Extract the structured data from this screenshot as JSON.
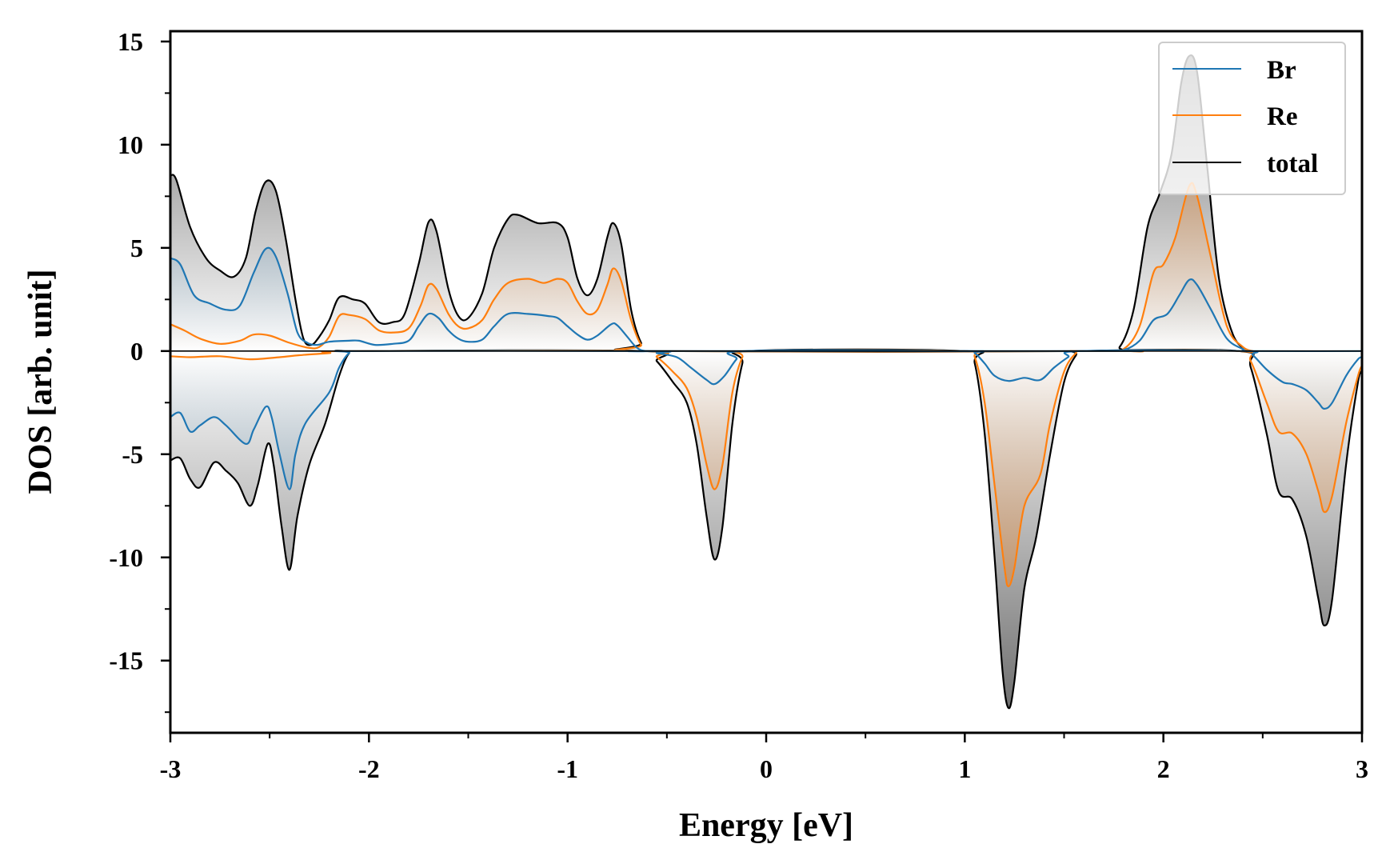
{
  "chart_data": {
    "type": "line",
    "title": "",
    "xlabel": "Energy [eV]",
    "ylabel": "DOS [arb. unit]",
    "xlim": [
      -3,
      3
    ],
    "ylim": [
      -18.5,
      15.5
    ],
    "x_ticks": [
      -3,
      -2,
      -1,
      0,
      1,
      2,
      3
    ],
    "x_tick_labels": [
      "-3",
      "-2",
      "-1",
      "0",
      "1",
      "2",
      "3"
    ],
    "y_ticks": [
      -15,
      -10,
      -5,
      0,
      5,
      10,
      15
    ],
    "y_tick_labels": [
      "-15",
      "-10",
      "-5",
      "0",
      "5",
      "10",
      "15"
    ],
    "grid": false,
    "legend_position": "top-right",
    "fill_under_curves": true,
    "series": [
      {
        "name": "Br",
        "color": "#1f77b4",
        "up": [
          [
            -3.0,
            4.5
          ],
          [
            -2.95,
            4.2
          ],
          [
            -2.88,
            2.7
          ],
          [
            -2.8,
            2.3
          ],
          [
            -2.72,
            2.0
          ],
          [
            -2.65,
            2.2
          ],
          [
            -2.58,
            3.8
          ],
          [
            -2.52,
            4.95
          ],
          [
            -2.47,
            4.6
          ],
          [
            -2.41,
            2.8
          ],
          [
            -2.36,
            0.9
          ],
          [
            -2.31,
            0.4
          ],
          [
            -2.26,
            0.3
          ],
          [
            -2.2,
            0.45
          ],
          [
            -2.1,
            0.5
          ],
          [
            -2.05,
            0.5
          ],
          [
            -1.97,
            0.3
          ],
          [
            -1.88,
            0.35
          ],
          [
            -1.8,
            0.5
          ],
          [
            -1.75,
            1.2
          ],
          [
            -1.7,
            1.8
          ],
          [
            -1.65,
            1.6
          ],
          [
            -1.6,
            1.0
          ],
          [
            -1.55,
            0.6
          ],
          [
            -1.5,
            0.45
          ],
          [
            -1.43,
            0.55
          ],
          [
            -1.37,
            1.2
          ],
          [
            -1.3,
            1.8
          ],
          [
            -1.2,
            1.8
          ],
          [
            -1.1,
            1.7
          ],
          [
            -1.05,
            1.6
          ],
          [
            -1.0,
            1.2
          ],
          [
            -0.95,
            0.8
          ],
          [
            -0.9,
            0.55
          ],
          [
            -0.85,
            0.75
          ],
          [
            -0.78,
            1.3
          ],
          [
            -0.75,
            1.25
          ],
          [
            -0.7,
            0.7
          ],
          [
            -0.65,
            0.15
          ],
          [
            -0.6,
            0.0
          ],
          [
            -0.5,
            0.0
          ],
          [
            3.0,
            0.0
          ],
          [
            1.7,
            0.0
          ],
          [
            1.8,
            0.05
          ],
          [
            1.88,
            0.5
          ],
          [
            1.95,
            1.5
          ],
          [
            2.02,
            1.8
          ],
          [
            2.08,
            2.7
          ],
          [
            2.13,
            3.45
          ],
          [
            2.17,
            3.2
          ],
          [
            2.24,
            2.0
          ],
          [
            2.32,
            0.6
          ],
          [
            2.4,
            0.1
          ],
          [
            2.45,
            0.0
          ]
        ],
        "down": [
          [
            -3.0,
            -3.2
          ],
          [
            -2.95,
            -3.0
          ],
          [
            -2.9,
            -3.9
          ],
          [
            -2.85,
            -3.6
          ],
          [
            -2.78,
            -3.2
          ],
          [
            -2.72,
            -3.6
          ],
          [
            -2.62,
            -4.5
          ],
          [
            -2.58,
            -3.8
          ],
          [
            -2.52,
            -2.7
          ],
          [
            -2.49,
            -3.2
          ],
          [
            -2.45,
            -5.0
          ],
          [
            -2.4,
            -6.7
          ],
          [
            -2.37,
            -5.0
          ],
          [
            -2.32,
            -3.5
          ],
          [
            -2.2,
            -2.0
          ],
          [
            -2.15,
            -0.8
          ],
          [
            -2.1,
            -0.1
          ],
          [
            -2.05,
            0.0
          ],
          [
            -0.6,
            0.0
          ],
          [
            -0.55,
            -0.1
          ],
          [
            -0.45,
            -0.3
          ],
          [
            -0.38,
            -0.8
          ],
          [
            -0.3,
            -1.4
          ],
          [
            -0.26,
            -1.6
          ],
          [
            -0.21,
            -1.2
          ],
          [
            -0.15,
            -0.4
          ],
          [
            -0.1,
            0.0
          ],
          [
            1.0,
            0.0
          ],
          [
            1.05,
            -0.1
          ],
          [
            1.1,
            -0.6
          ],
          [
            1.15,
            -1.2
          ],
          [
            1.22,
            -1.45
          ],
          [
            1.3,
            -1.3
          ],
          [
            1.38,
            -1.4
          ],
          [
            1.45,
            -0.8
          ],
          [
            1.52,
            -0.3
          ],
          [
            1.58,
            0.0
          ],
          [
            2.4,
            0.0
          ],
          [
            2.45,
            -0.2
          ],
          [
            2.52,
            -0.9
          ],
          [
            2.6,
            -1.5
          ],
          [
            2.65,
            -1.6
          ],
          [
            2.72,
            -1.9
          ],
          [
            2.78,
            -2.5
          ],
          [
            2.81,
            -2.8
          ],
          [
            2.85,
            -2.5
          ],
          [
            2.92,
            -1.2
          ],
          [
            2.98,
            -0.4
          ],
          [
            3.0,
            -0.3
          ]
        ]
      },
      {
        "name": "Re",
        "color": "#ff7f0e",
        "up": [
          [
            -3.0,
            1.3
          ],
          [
            -2.93,
            1.0
          ],
          [
            -2.85,
            0.6
          ],
          [
            -2.75,
            0.35
          ],
          [
            -2.65,
            0.5
          ],
          [
            -2.58,
            0.8
          ],
          [
            -2.5,
            0.75
          ],
          [
            -2.4,
            0.4
          ],
          [
            -2.3,
            0.15
          ],
          [
            -2.25,
            0.2
          ],
          [
            -2.2,
            0.7
          ],
          [
            -2.15,
            1.7
          ],
          [
            -2.1,
            1.75
          ],
          [
            -2.02,
            1.55
          ],
          [
            -1.95,
            1.0
          ],
          [
            -1.88,
            0.9
          ],
          [
            -1.8,
            1.1
          ],
          [
            -1.74,
            2.2
          ],
          [
            -1.7,
            3.2
          ],
          [
            -1.66,
            3.0
          ],
          [
            -1.6,
            1.8
          ],
          [
            -1.55,
            1.2
          ],
          [
            -1.5,
            1.1
          ],
          [
            -1.43,
            1.5
          ],
          [
            -1.37,
            2.5
          ],
          [
            -1.3,
            3.3
          ],
          [
            -1.2,
            3.5
          ],
          [
            -1.12,
            3.3
          ],
          [
            -1.05,
            3.5
          ],
          [
            -1.0,
            3.3
          ],
          [
            -0.95,
            2.4
          ],
          [
            -0.9,
            1.8
          ],
          [
            -0.85,
            2.0
          ],
          [
            -0.8,
            3.2
          ],
          [
            -0.77,
            4.0
          ],
          [
            -0.73,
            3.4
          ],
          [
            -0.68,
            1.5
          ],
          [
            -0.63,
            0.3
          ],
          [
            -0.58,
            0.0
          ],
          [
            1.7,
            0.0
          ],
          [
            1.8,
            0.1
          ],
          [
            1.88,
            1.2
          ],
          [
            1.95,
            3.8
          ],
          [
            2.0,
            4.2
          ],
          [
            2.06,
            5.5
          ],
          [
            2.13,
            8.0
          ],
          [
            2.17,
            7.5
          ],
          [
            2.24,
            4.5
          ],
          [
            2.32,
            1.2
          ],
          [
            2.4,
            0.2
          ],
          [
            2.45,
            0.0
          ]
        ],
        "down": [
          [
            -3.0,
            -0.25
          ],
          [
            -2.9,
            -0.3
          ],
          [
            -2.75,
            -0.25
          ],
          [
            -2.6,
            -0.4
          ],
          [
            -2.45,
            -0.3
          ],
          [
            -2.35,
            -0.2
          ],
          [
            -2.2,
            -0.1
          ],
          [
            -2.1,
            0.0
          ],
          [
            -0.62,
            0.0
          ],
          [
            -0.55,
            -0.3
          ],
          [
            -0.47,
            -1.0
          ],
          [
            -0.4,
            -1.8
          ],
          [
            -0.35,
            -3.2
          ],
          [
            -0.3,
            -5.5
          ],
          [
            -0.26,
            -6.7
          ],
          [
            -0.22,
            -5.5
          ],
          [
            -0.17,
            -2.0
          ],
          [
            -0.12,
            -0.3
          ],
          [
            -0.08,
            0.0
          ],
          [
            1.0,
            0.0
          ],
          [
            1.05,
            -0.3
          ],
          [
            1.1,
            -2.5
          ],
          [
            1.15,
            -6.5
          ],
          [
            1.2,
            -10.5
          ],
          [
            1.22,
            -11.4
          ],
          [
            1.25,
            -10.5
          ],
          [
            1.3,
            -7.5
          ],
          [
            1.38,
            -6.0
          ],
          [
            1.43,
            -3.5
          ],
          [
            1.5,
            -1.0
          ],
          [
            1.56,
            -0.1
          ],
          [
            1.6,
            0.0
          ],
          [
            2.38,
            0.0
          ],
          [
            2.44,
            -0.5
          ],
          [
            2.52,
            -2.5
          ],
          [
            2.58,
            -3.9
          ],
          [
            2.65,
            -4.0
          ],
          [
            2.72,
            -5.0
          ],
          [
            2.78,
            -6.8
          ],
          [
            2.81,
            -7.8
          ],
          [
            2.85,
            -7.0
          ],
          [
            2.92,
            -3.5
          ],
          [
            2.98,
            -1.2
          ],
          [
            3.0,
            -0.7
          ]
        ]
      },
      {
        "name": "total",
        "color": "#000000",
        "up": [
          [
            -3.0,
            8.5
          ],
          [
            -2.97,
            8.3
          ],
          [
            -2.9,
            6.0
          ],
          [
            -2.82,
            4.5
          ],
          [
            -2.75,
            3.9
          ],
          [
            -2.68,
            3.6
          ],
          [
            -2.62,
            4.5
          ],
          [
            -2.57,
            6.8
          ],
          [
            -2.52,
            8.2
          ],
          [
            -2.47,
            7.8
          ],
          [
            -2.42,
            5.5
          ],
          [
            -2.37,
            2.5
          ],
          [
            -2.33,
            0.6
          ],
          [
            -2.29,
            0.3
          ],
          [
            -2.25,
            0.7
          ],
          [
            -2.2,
            1.5
          ],
          [
            -2.15,
            2.6
          ],
          [
            -2.08,
            2.5
          ],
          [
            -2.02,
            2.3
          ],
          [
            -1.95,
            1.4
          ],
          [
            -1.88,
            1.4
          ],
          [
            -1.82,
            1.8
          ],
          [
            -1.75,
            4.2
          ],
          [
            -1.7,
            6.25
          ],
          [
            -1.66,
            5.8
          ],
          [
            -1.6,
            3.0
          ],
          [
            -1.55,
            1.7
          ],
          [
            -1.5,
            1.6
          ],
          [
            -1.43,
            2.8
          ],
          [
            -1.37,
            5.0
          ],
          [
            -1.3,
            6.4
          ],
          [
            -1.25,
            6.6
          ],
          [
            -1.15,
            6.2
          ],
          [
            -1.05,
            6.2
          ],
          [
            -1.0,
            5.5
          ],
          [
            -0.95,
            3.5
          ],
          [
            -0.9,
            2.7
          ],
          [
            -0.85,
            3.5
          ],
          [
            -0.8,
            5.5
          ],
          [
            -0.77,
            6.2
          ],
          [
            -0.73,
            5.2
          ],
          [
            -0.68,
            2.0
          ],
          [
            -0.63,
            0.4
          ],
          [
            -0.58,
            0.0
          ],
          [
            1.7,
            0.0
          ],
          [
            1.78,
            0.2
          ],
          [
            1.85,
            2.0
          ],
          [
            1.92,
            6.0
          ],
          [
            1.98,
            7.6
          ],
          [
            2.04,
            9.5
          ],
          [
            2.09,
            13.0
          ],
          [
            2.13,
            14.3
          ],
          [
            2.17,
            13.5
          ],
          [
            2.22,
            9.0
          ],
          [
            2.28,
            3.5
          ],
          [
            2.35,
            0.8
          ],
          [
            2.42,
            0.05
          ],
          [
            2.45,
            0.0
          ]
        ],
        "down": [
          [
            -3.0,
            -5.3
          ],
          [
            -2.95,
            -5.2
          ],
          [
            -2.9,
            -6.2
          ],
          [
            -2.85,
            -6.6
          ],
          [
            -2.78,
            -5.4
          ],
          [
            -2.72,
            -5.8
          ],
          [
            -2.66,
            -6.4
          ],
          [
            -2.6,
            -7.5
          ],
          [
            -2.56,
            -6.5
          ],
          [
            -2.51,
            -4.5
          ],
          [
            -2.48,
            -5.5
          ],
          [
            -2.44,
            -8.5
          ],
          [
            -2.4,
            -10.6
          ],
          [
            -2.36,
            -8.0
          ],
          [
            -2.3,
            -5.5
          ],
          [
            -2.22,
            -3.5
          ],
          [
            -2.15,
            -1.2
          ],
          [
            -2.1,
            -0.1
          ],
          [
            -2.05,
            0.0
          ],
          [
            -0.62,
            0.0
          ],
          [
            -0.55,
            -0.5
          ],
          [
            -0.47,
            -1.5
          ],
          [
            -0.4,
            -2.5
          ],
          [
            -0.35,
            -4.5
          ],
          [
            -0.3,
            -8.0
          ],
          [
            -0.26,
            -10.1
          ],
          [
            -0.22,
            -8.5
          ],
          [
            -0.17,
            -3.5
          ],
          [
            -0.12,
            -0.6
          ],
          [
            -0.08,
            0.0
          ],
          [
            1.0,
            0.0
          ],
          [
            1.05,
            -0.6
          ],
          [
            1.1,
            -4.0
          ],
          [
            1.15,
            -10.0
          ],
          [
            1.19,
            -15.5
          ],
          [
            1.22,
            -17.3
          ],
          [
            1.25,
            -16.0
          ],
          [
            1.3,
            -11.5
          ],
          [
            1.36,
            -9.0
          ],
          [
            1.43,
            -5.0
          ],
          [
            1.5,
            -1.5
          ],
          [
            1.56,
            -0.2
          ],
          [
            1.6,
            0.0
          ],
          [
            2.38,
            0.0
          ],
          [
            2.44,
            -0.8
          ],
          [
            2.52,
            -4.0
          ],
          [
            2.58,
            -6.8
          ],
          [
            2.65,
            -7.2
          ],
          [
            2.72,
            -9.0
          ],
          [
            2.78,
            -12.0
          ],
          [
            2.81,
            -13.3
          ],
          [
            2.85,
            -12.0
          ],
          [
            2.92,
            -5.5
          ],
          [
            2.98,
            -1.5
          ],
          [
            3.0,
            -1.0
          ]
        ]
      }
    ]
  }
}
